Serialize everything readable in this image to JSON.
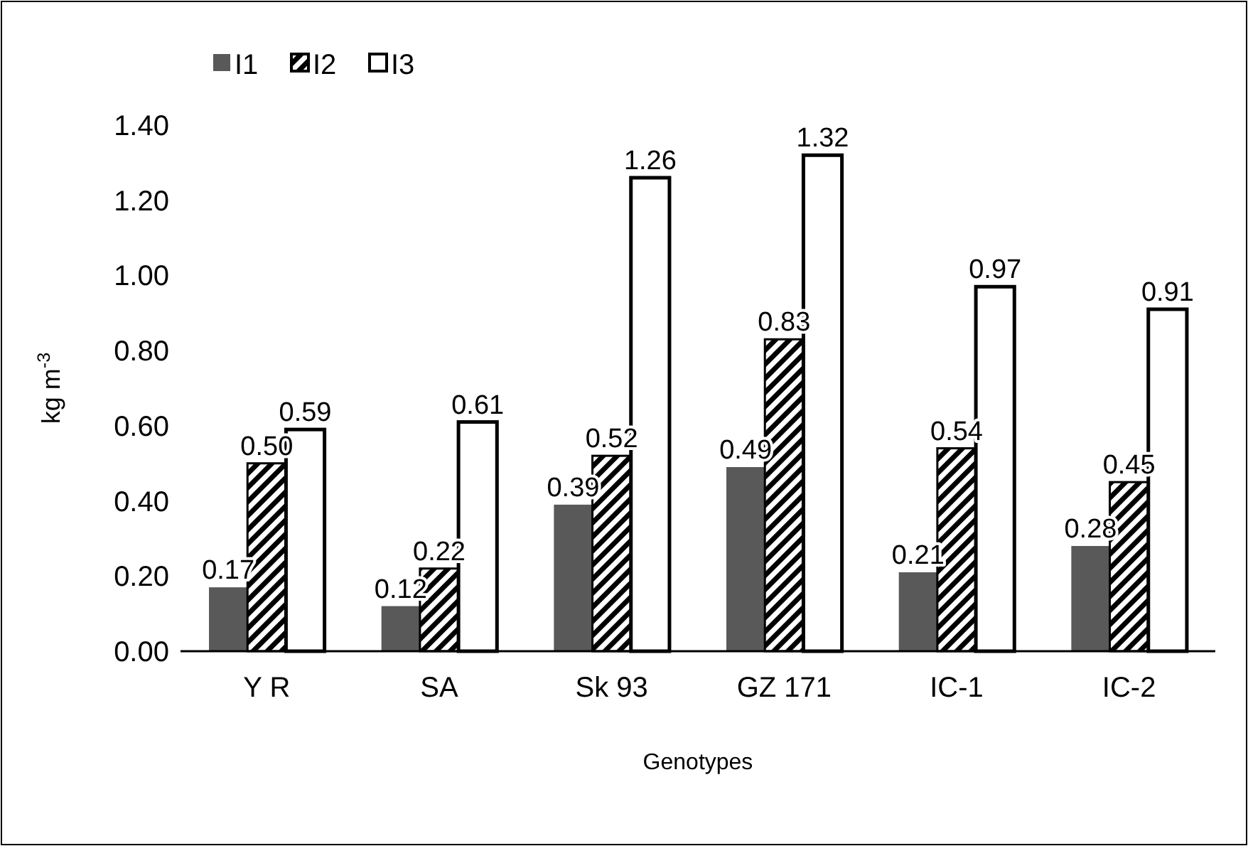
{
  "chart_data": {
    "type": "bar",
    "ylabel": "kg m$^{-3}$",
    "xlabel": "Genotypes",
    "categories": [
      "Y R",
      "SA",
      "Sk 93",
      "GZ 171",
      "IC-1",
      "IC-2"
    ],
    "series": [
      {
        "name": "I1",
        "color": "#595959",
        "values": [
          0.17,
          0.12,
          0.39,
          0.49,
          0.21,
          0.28
        ],
        "value_labels": [
          "0.17",
          "0.12",
          "0.39",
          "0.49",
          "0.21",
          "0.28"
        ]
      },
      {
        "name": "I2",
        "color": "#000000",
        "values": [
          0.5,
          0.22,
          0.52,
          0.83,
          0.54,
          0.45
        ],
        "value_labels": [
          "0.50",
          "0.22",
          "0.52",
          "0.83",
          "0.54",
          "0.45"
        ]
      },
      {
        "name": "I3",
        "color": "#ffffff",
        "values": [
          0.59,
          0.61,
          1.26,
          1.32,
          0.97,
          0.91
        ],
        "value_labels": [
          "0.59",
          "0.61",
          "1.26",
          "1.32",
          "0.97",
          "0.91"
        ]
      }
    ],
    "ylim": [
      0,
      1.4
    ],
    "yticks": [
      {
        "value": 0,
        "label": "0.00"
      },
      {
        "value": 0.2,
        "label": "0.20"
      },
      {
        "value": 0.4,
        "label": "0.40"
      },
      {
        "value": 0.6,
        "label": "0.60"
      },
      {
        "value": 0.8,
        "label": "0.80"
      },
      {
        "value": 1.0,
        "label": "1.00"
      },
      {
        "value": 1.2,
        "label": "1.20"
      },
      {
        "value": 1.4,
        "label": "1.40"
      }
    ],
    "legend": "top left",
    "grid": false
  }
}
